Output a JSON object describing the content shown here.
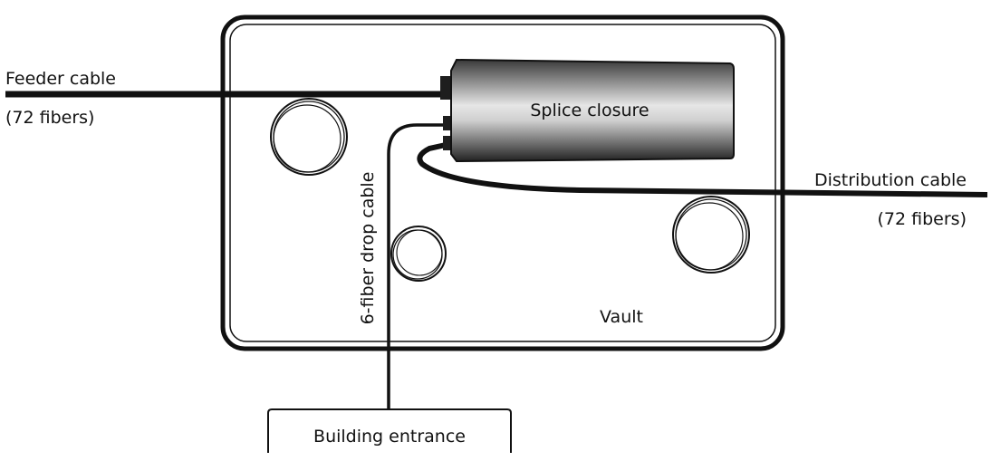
{
  "labels": {
    "feeder_cable": "Feeder cable",
    "feeder_fibers": "(72 fibers)",
    "splice_closure": "Splice closure",
    "distribution_cable": "Distribution cable",
    "distribution_fibers": "(72 fibers)",
    "drop_cable": "6-fiber drop cable",
    "vault": "Vault",
    "building_entrance": "Building entrance"
  },
  "colors": {
    "line": "#111111",
    "closure_dark": "#2a2a2a",
    "closure_light": "#d9d9d9",
    "background": "#ffffff"
  }
}
